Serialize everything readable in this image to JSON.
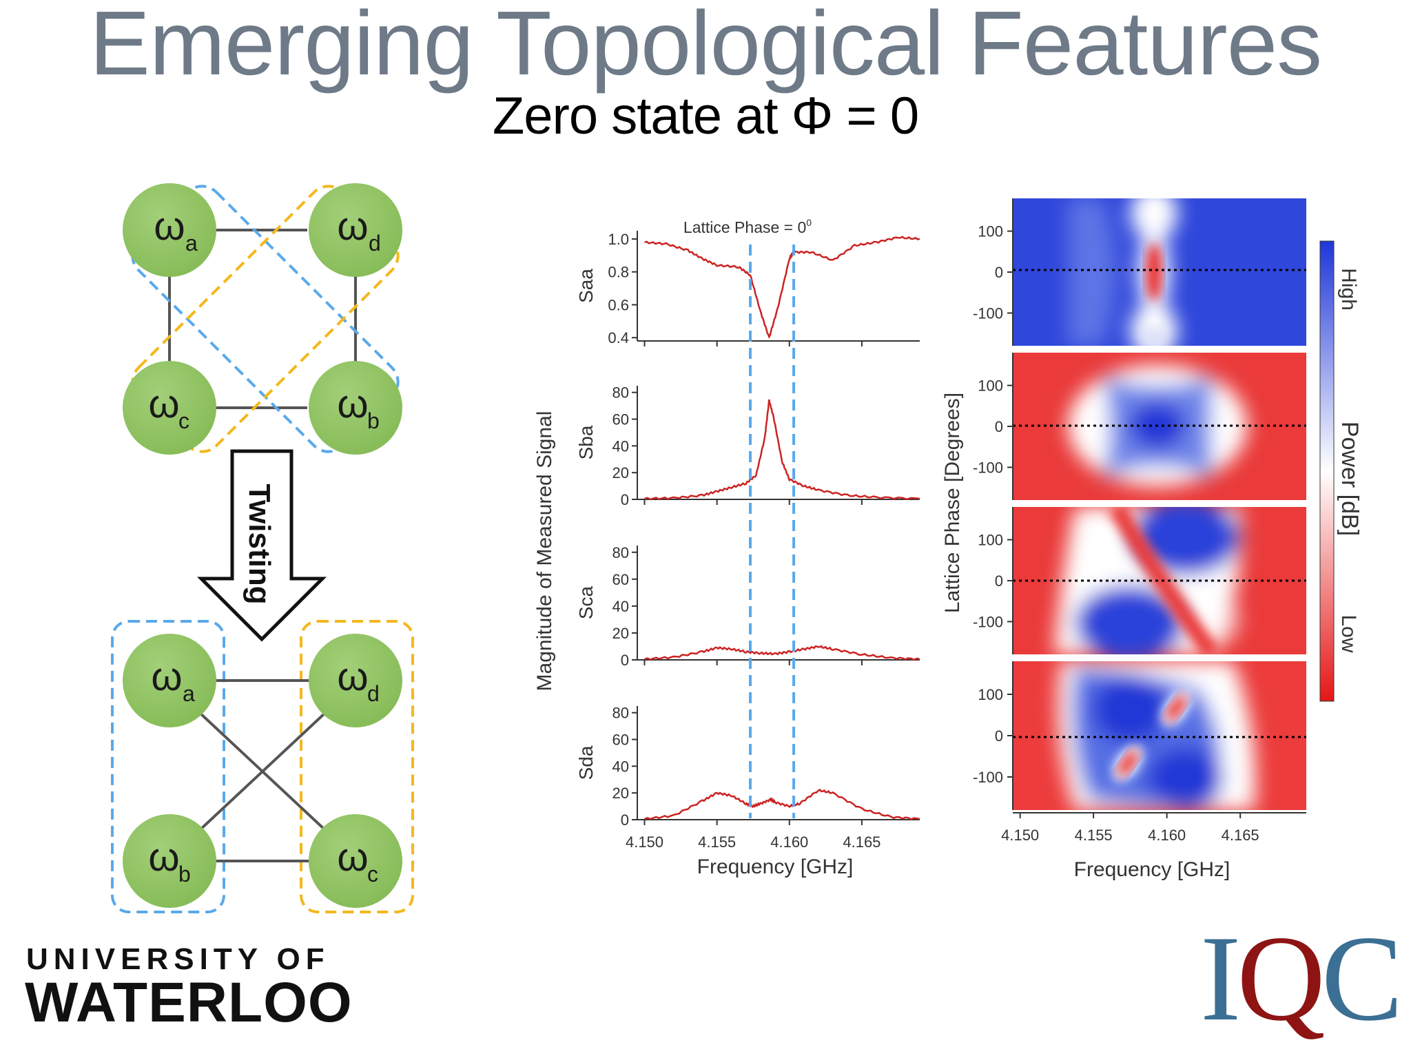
{
  "slide": {
    "title": "Emerging Topological Features",
    "subtitle": "Zero state at Φ = 0"
  },
  "diagram": {
    "twisting_label": "Twisting",
    "omega": "ω",
    "top_nodes": [
      "a",
      "d",
      "c",
      "b"
    ],
    "bottom_nodes": [
      "a",
      "d",
      "b",
      "c"
    ],
    "colors": {
      "node": "#8dc061",
      "blue_loop": "#5aa9ea",
      "yellow_loop": "#f3b81c",
      "edge": "#555555"
    }
  },
  "chart_data": [
    {
      "type": "line",
      "title": "Lattice Phase = 0°",
      "title_text": "Lattice Phase = 0",
      "title_sup": "0",
      "xlabel": "Frequency [GHz]",
      "ylabel": "Magnitude of Measured Signal",
      "xlim": [
        4.1495,
        4.169
      ],
      "xticks": [
        "4.150",
        "4.155",
        "4.160",
        "4.165"
      ],
      "xtick_values": [
        4.15,
        4.155,
        4.16,
        4.165
      ],
      "marker_lines_ghz": [
        4.1573,
        4.1603
      ],
      "line_color": "#cc2222",
      "panels": [
        {
          "name": "Saa",
          "ylim": [
            0.38,
            1.05
          ],
          "yticks": [
            "1.0",
            "0.8",
            "0.6",
            "0.4"
          ],
          "ytick_values": [
            1.0,
            0.8,
            0.6,
            0.4
          ],
          "x": [
            4.15,
            4.1515,
            4.153,
            4.154,
            4.155,
            4.1565,
            4.1573,
            4.158,
            4.1586,
            4.1592,
            4.16,
            4.1603,
            4.1615,
            4.163,
            4.1645,
            4.166,
            4.1675,
            4.169
          ],
          "y": [
            0.98,
            0.97,
            0.93,
            0.88,
            0.84,
            0.83,
            0.78,
            0.56,
            0.4,
            0.58,
            0.88,
            0.92,
            0.92,
            0.87,
            0.96,
            0.98,
            1.01,
            1.0
          ]
        },
        {
          "name": "Sba",
          "ylim": [
            0,
            85
          ],
          "yticks": [
            "80",
            "60",
            "40",
            "20",
            "0"
          ],
          "ytick_values": [
            80,
            60,
            40,
            20,
            0
          ],
          "x": [
            4.15,
            4.152,
            4.154,
            4.155,
            4.156,
            4.157,
            4.1577,
            4.1583,
            4.1586,
            4.1589,
            4.1595,
            4.16,
            4.161,
            4.162,
            4.164,
            4.166,
            4.169
          ],
          "y": [
            0.5,
            1,
            3,
            6,
            9,
            12,
            18,
            46,
            74,
            62,
            28,
            15,
            10,
            7,
            3,
            1.5,
            0.5
          ]
        },
        {
          "name": "Sca",
          "ylim": [
            0,
            85
          ],
          "yticks": [
            "80",
            "60",
            "40",
            "20",
            "0"
          ],
          "ytick_values": [
            80,
            60,
            40,
            20,
            0
          ],
          "x": [
            4.15,
            4.152,
            4.154,
            4.155,
            4.156,
            4.157,
            4.158,
            4.159,
            4.16,
            4.161,
            4.162,
            4.163,
            4.165,
            4.167,
            4.169
          ],
          "y": [
            0.5,
            2,
            6,
            9,
            8,
            6,
            5,
            4.5,
            6,
            8,
            10,
            8,
            4,
            1.5,
            0.5
          ]
        },
        {
          "name": "Sda",
          "ylim": [
            0,
            85
          ],
          "yticks": [
            "80",
            "60",
            "40",
            "20",
            "0"
          ],
          "ytick_values": [
            80,
            60,
            40,
            20,
            0
          ],
          "x": [
            4.15,
            4.152,
            4.154,
            4.155,
            4.156,
            4.157,
            4.1575,
            4.158,
            4.1587,
            4.159,
            4.16,
            4.1607,
            4.162,
            4.163,
            4.165,
            4.167,
            4.169
          ],
          "y": [
            0.5,
            3,
            14,
            20,
            18,
            12,
            10,
            12,
            15,
            13,
            10,
            12,
            22,
            20,
            8,
            2,
            0.5
          ]
        }
      ]
    },
    {
      "type": "heatmap",
      "xlabel": "Frequency [GHz]",
      "ylabel": "Lattice Phase [Degrees]",
      "xticks": [
        "4.150",
        "4.155",
        "4.160",
        "4.165"
      ],
      "xtick_values": [
        4.15,
        4.155,
        4.16,
        4.165
      ],
      "xlim": [
        4.1495,
        4.1695
      ],
      "yticks": [
        "100",
        "0",
        "-100"
      ],
      "ytick_values": [
        100,
        0,
        -100
      ],
      "ylim": [
        -180,
        180
      ],
      "colorbar": {
        "label": "Power [dB]",
        "high": "High",
        "low": "Low"
      },
      "panels": [
        "Saa",
        "Sba",
        "Sca",
        "Sda"
      ]
    }
  ]
}
